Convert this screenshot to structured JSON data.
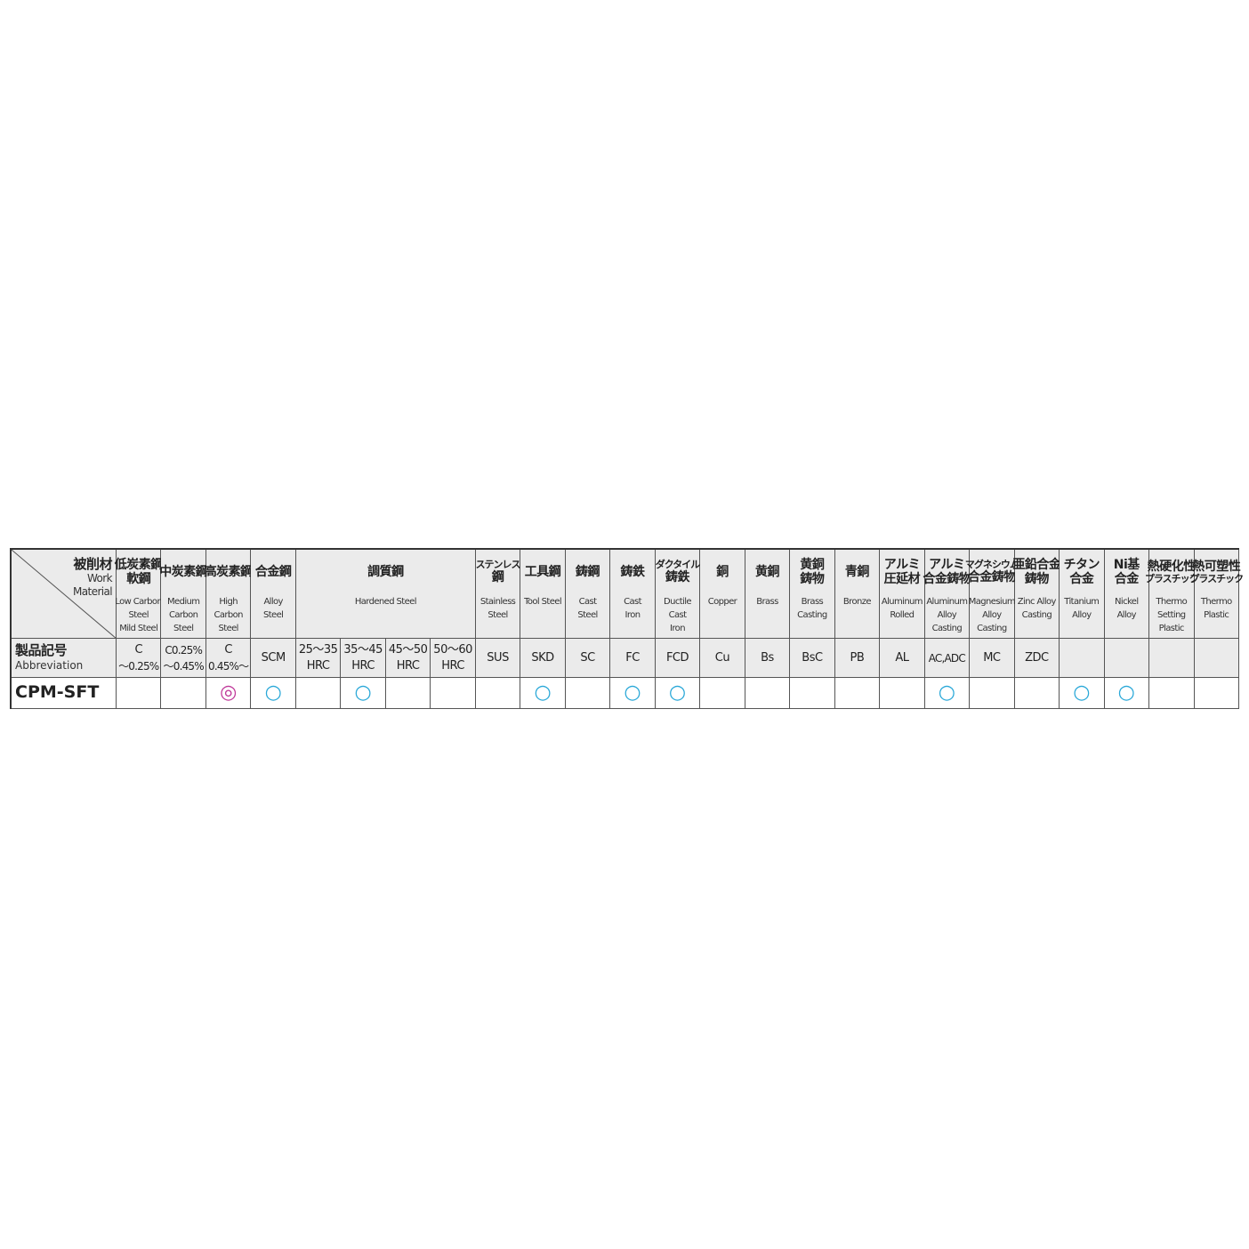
{
  "corner": {
    "jp": "被削材",
    "en": [
      "Work",
      "Material"
    ]
  },
  "abbr_label": {
    "jp": "製品記号",
    "en": "Abbreviation"
  },
  "materials": [
    {
      "jp": [
        "低炭素鋼",
        "軟鋼"
      ],
      "en": [
        "Low Carbon",
        "Steel",
        "Mild Steel"
      ],
      "abbr": [
        "C",
        "～0.25%"
      ]
    },
    {
      "jp": [
        "中炭素鋼"
      ],
      "en": [
        "Medium",
        "Carbon",
        "Steel"
      ],
      "abbr": [
        "C0.25%",
        "～0.45%"
      ]
    },
    {
      "jp": [
        "高炭素鋼"
      ],
      "en": [
        "High",
        "Carbon",
        "Steel"
      ],
      "abbr": [
        "C",
        "0.45%～"
      ]
    },
    {
      "jp": [
        "合金鋼"
      ],
      "en": [
        "Alloy",
        "Steel"
      ],
      "abbr": [
        "SCM"
      ]
    },
    {
      "jp": [
        "調質鋼"
      ],
      "en": [
        "Hardened Steel"
      ],
      "columns": [
        [
          "25～35",
          "HRC"
        ],
        [
          "35～45",
          "HRC"
        ],
        [
          "45～50",
          "HRC"
        ],
        [
          "50～60",
          "HRC"
        ]
      ]
    },
    {
      "jp": [
        "ステンレス",
        "鋼"
      ],
      "en": [
        "Stainless",
        "Steel"
      ],
      "abbr": [
        "SUS"
      ]
    },
    {
      "jp": [
        "工具鋼"
      ],
      "en": [
        "Tool Steel"
      ],
      "abbr": [
        "SKD"
      ]
    },
    {
      "jp": [
        "鋳鋼"
      ],
      "en": [
        "Cast",
        "Steel"
      ],
      "abbr": [
        "SC"
      ]
    },
    {
      "jp": [
        "鋳鉄"
      ],
      "en": [
        "Cast",
        "Iron"
      ],
      "abbr": [
        "FC"
      ]
    },
    {
      "jp": [
        "ダクタイル",
        "鋳鉄"
      ],
      "en": [
        "Ductile",
        "Cast",
        "Iron"
      ],
      "abbr": [
        "FCD"
      ]
    },
    {
      "jp": [
        "銅"
      ],
      "en": [
        "Copper"
      ],
      "abbr": [
        "Cu"
      ]
    },
    {
      "jp": [
        "黄銅"
      ],
      "en": [
        "Brass"
      ],
      "abbr": [
        "Bs"
      ]
    },
    {
      "jp": [
        "黄銅",
        "鋳物"
      ],
      "en": [
        "Brass",
        "Casting"
      ],
      "abbr": [
        "BsC"
      ]
    },
    {
      "jp": [
        "青銅"
      ],
      "en": [
        "Bronze"
      ],
      "abbr": [
        "PB"
      ]
    },
    {
      "jp": [
        "アルミ",
        "圧延材"
      ],
      "en": [
        "Aluminum",
        "Rolled"
      ],
      "abbr": [
        "AL"
      ]
    },
    {
      "jp": [
        "アルミ",
        "合金鋳物"
      ],
      "en": [
        "Aluminum",
        "Alloy",
        "Casting"
      ],
      "abbr": [
        "AC,ADC"
      ]
    },
    {
      "jp": [
        "マグネシウム",
        "合金鋳物"
      ],
      "en": [
        "Magnesium",
        "Alloy",
        "Casting"
      ],
      "abbr": [
        "MC"
      ]
    },
    {
      "jp": [
        "亜鉛合金",
        "鋳物"
      ],
      "en": [
        "Zinc Alloy",
        "Casting"
      ],
      "abbr": [
        "ZDC"
      ]
    },
    {
      "jp": [
        "チタン",
        "合金"
      ],
      "en": [
        "Titanium",
        "Alloy"
      ],
      "abbr": []
    },
    {
      "jp": [
        "Ni基",
        "合金"
      ],
      "en": [
        "Nickel",
        "Alloy"
      ],
      "abbr": []
    },
    {
      "jp": [
        "熱硬化性",
        "プラスチック"
      ],
      "en": [
        "Thermo",
        "Setting",
        "Plastic"
      ],
      "abbr": []
    },
    {
      "jp": [
        "熱可塑性",
        "プラスチック"
      ],
      "en": [
        "Thermo",
        "Plastic"
      ],
      "abbr": []
    }
  ],
  "product": {
    "name": "CPM-SFT",
    "ratings": [
      null,
      null,
      "◎",
      "○",
      null,
      "○",
      null,
      null,
      null,
      "○",
      null,
      "○",
      "○",
      null,
      null,
      null,
      null,
      null,
      "○",
      null,
      null,
      "○",
      "○",
      null,
      null
    ]
  }
}
